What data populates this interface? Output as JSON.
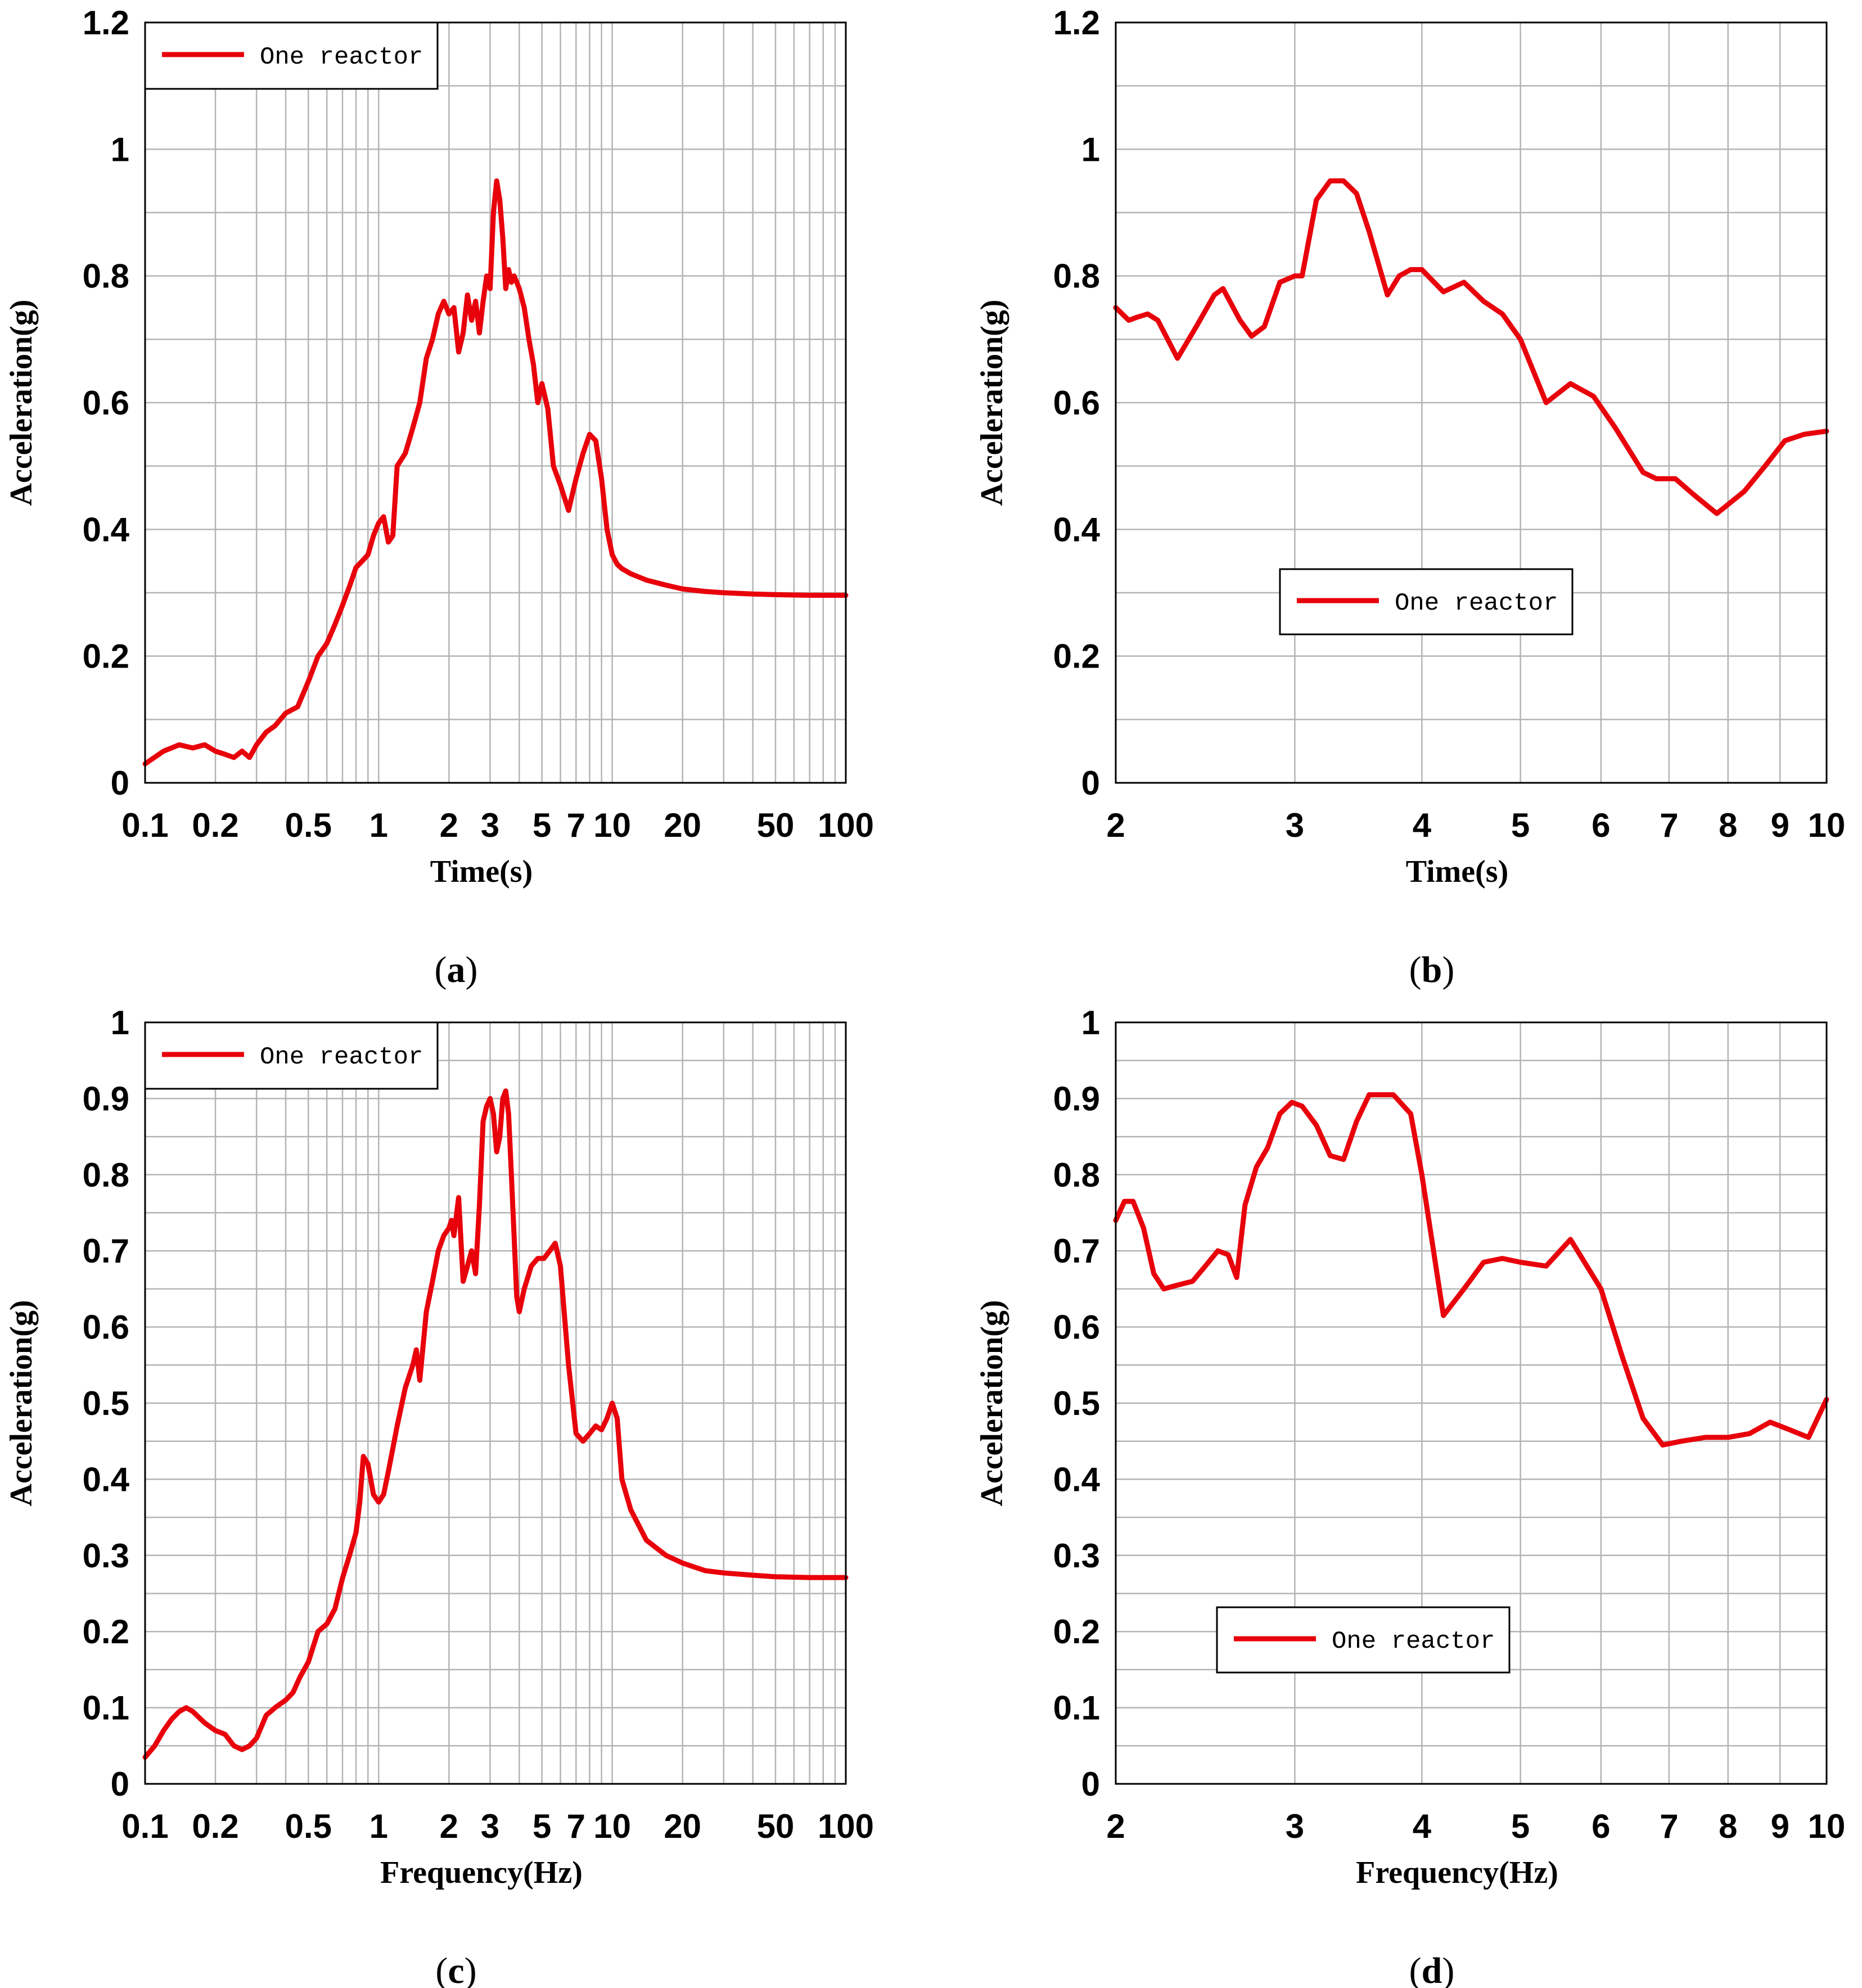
{
  "figure": {
    "line_color": "#e8000b",
    "grid_color": "#b4b4b4",
    "frame_color": "#000000"
  },
  "chart_data": [
    {
      "panel": "a",
      "caption_letter": "a",
      "type": "line",
      "xscale": "log",
      "xlim": [
        0.1,
        100
      ],
      "ylim": [
        0,
        1.2
      ],
      "xticks": [
        0.1,
        0.2,
        0.5,
        1,
        2,
        3,
        5,
        7,
        10,
        20,
        50,
        100
      ],
      "xtick_labels": [
        "0.1",
        "0.2",
        "0.5",
        "1",
        "2",
        "3",
        "5",
        "7",
        "10",
        "20",
        "50",
        "100"
      ],
      "yticks": [
        0,
        0.2,
        0.4,
        0.6,
        0.8,
        1,
        1.2
      ],
      "ytick_labels": [
        "0",
        "0.2",
        "0.4",
        "0.6",
        "0.8",
        "1",
        "1.2"
      ],
      "xlabel": "Time(s)",
      "ylabel": "Acceleration(g)",
      "legend": "One reactor",
      "legend_position": "top-left",
      "grid": true,
      "series": [
        {
          "name": "One reactor",
          "x": [
            0.1,
            0.12,
            0.14,
            0.16,
            0.18,
            0.2,
            0.22,
            0.24,
            0.26,
            0.28,
            0.3,
            0.33,
            0.36,
            0.4,
            0.45,
            0.5,
            0.55,
            0.6,
            0.65,
            0.7,
            0.75,
            0.8,
            0.85,
            0.9,
            0.95,
            1.0,
            1.05,
            1.1,
            1.15,
            1.2,
            1.3,
            1.4,
            1.5,
            1.6,
            1.7,
            1.8,
            1.9,
            2.0,
            2.1,
            2.2,
            2.3,
            2.4,
            2.5,
            2.6,
            2.7,
            2.8,
            2.9,
            3.0,
            3.1,
            3.2,
            3.3,
            3.4,
            3.5,
            3.6,
            3.7,
            3.8,
            3.9,
            4.0,
            4.2,
            4.4,
            4.6,
            4.8,
            5.0,
            5.3,
            5.6,
            6.0,
            6.5,
            7.0,
            7.5,
            8.0,
            8.5,
            9.0,
            9.5,
            10.0,
            10.5,
            11.0,
            12.0,
            14.0,
            17.0,
            20.0,
            25.0,
            30.0,
            40.0,
            50.0,
            70.0,
            100.0
          ],
          "y": [
            0.03,
            0.05,
            0.06,
            0.055,
            0.06,
            0.05,
            0.045,
            0.04,
            0.05,
            0.04,
            0.06,
            0.08,
            0.09,
            0.11,
            0.12,
            0.16,
            0.2,
            0.22,
            0.25,
            0.28,
            0.31,
            0.34,
            0.35,
            0.36,
            0.39,
            0.41,
            0.42,
            0.38,
            0.39,
            0.5,
            0.52,
            0.56,
            0.6,
            0.67,
            0.7,
            0.74,
            0.76,
            0.74,
            0.75,
            0.68,
            0.71,
            0.77,
            0.73,
            0.76,
            0.71,
            0.76,
            0.8,
            0.78,
            0.9,
            0.95,
            0.92,
            0.86,
            0.78,
            0.81,
            0.79,
            0.8,
            0.79,
            0.78,
            0.75,
            0.7,
            0.66,
            0.6,
            0.63,
            0.59,
            0.5,
            0.47,
            0.43,
            0.48,
            0.52,
            0.55,
            0.54,
            0.48,
            0.4,
            0.36,
            0.345,
            0.338,
            0.33,
            0.32,
            0.312,
            0.306,
            0.302,
            0.3,
            0.298,
            0.297,
            0.296,
            0.296
          ]
        }
      ]
    },
    {
      "panel": "b",
      "caption_letter": "b",
      "type": "line",
      "xscale": "log",
      "xlim": [
        2,
        10
      ],
      "ylim": [
        0,
        1.2
      ],
      "xticks": [
        2,
        3,
        4,
        5,
        6,
        7,
        8,
        9,
        10
      ],
      "xtick_labels": [
        "2",
        "3",
        "4",
        "5",
        "6",
        "7",
        "8",
        "9",
        "10"
      ],
      "yticks": [
        0,
        0.2,
        0.4,
        0.6,
        0.8,
        1,
        1.2
      ],
      "ytick_labels": [
        "0",
        "0.2",
        "0.4",
        "0.6",
        "0.8",
        "1",
        "1.2"
      ],
      "xlabel": "Time(s)",
      "ylabel": "Acceleration(g)",
      "legend": "One reactor",
      "legend_position": "center",
      "grid": true,
      "series": [
        {
          "name": "One reactor",
          "x": [
            2.0,
            2.06,
            2.1,
            2.15,
            2.2,
            2.3,
            2.4,
            2.5,
            2.55,
            2.65,
            2.72,
            2.8,
            2.9,
            3.0,
            3.05,
            3.15,
            3.25,
            3.35,
            3.45,
            3.55,
            3.7,
            3.8,
            3.9,
            4.0,
            4.2,
            4.4,
            4.6,
            4.8,
            5.0,
            5.3,
            5.6,
            5.9,
            6.2,
            6.6,
            6.8,
            7.1,
            7.4,
            7.8,
            8.3,
            8.7,
            9.1,
            9.5,
            10.0
          ],
          "y": [
            0.75,
            0.73,
            0.735,
            0.74,
            0.73,
            0.67,
            0.72,
            0.77,
            0.78,
            0.73,
            0.705,
            0.72,
            0.79,
            0.8,
            0.8,
            0.92,
            0.95,
            0.95,
            0.93,
            0.87,
            0.77,
            0.8,
            0.81,
            0.81,
            0.775,
            0.79,
            0.76,
            0.74,
            0.7,
            0.6,
            0.63,
            0.61,
            0.56,
            0.49,
            0.48,
            0.48,
            0.455,
            0.425,
            0.46,
            0.5,
            0.54,
            0.55,
            0.555
          ]
        }
      ]
    },
    {
      "panel": "c",
      "caption_letter": "c",
      "type": "line",
      "xscale": "log",
      "xlim": [
        0.1,
        100
      ],
      "ylim": [
        0,
        1
      ],
      "xticks": [
        0.1,
        0.2,
        0.5,
        1,
        2,
        3,
        5,
        7,
        10,
        20,
        50,
        100
      ],
      "xtick_labels": [
        "0.1",
        "0.2",
        "0.5",
        "1",
        "2",
        "3",
        "5",
        "7",
        "10",
        "20",
        "50",
        "100"
      ],
      "yticks": [
        0,
        0.1,
        0.2,
        0.3,
        0.4,
        0.5,
        0.6,
        0.7,
        0.8,
        0.9,
        1
      ],
      "ytick_labels": [
        "0",
        "0.1",
        "0.2",
        "0.3",
        "0.4",
        "0.5",
        "0.6",
        "0.7",
        "0.8",
        "0.9",
        "1"
      ],
      "xlabel": "Frequency(Hz)",
      "ylabel": "Acceleration(g)",
      "legend": "One reactor",
      "legend_position": "top-left",
      "grid": true,
      "series": [
        {
          "name": "One reactor",
          "x": [
            0.1,
            0.11,
            0.12,
            0.13,
            0.14,
            0.15,
            0.16,
            0.18,
            0.2,
            0.22,
            0.24,
            0.26,
            0.28,
            0.3,
            0.33,
            0.36,
            0.4,
            0.43,
            0.46,
            0.5,
            0.55,
            0.6,
            0.65,
            0.7,
            0.75,
            0.8,
            0.83,
            0.86,
            0.9,
            0.95,
            1.0,
            1.05,
            1.1,
            1.2,
            1.3,
            1.4,
            1.45,
            1.5,
            1.6,
            1.7,
            1.8,
            1.9,
            2.0,
            2.05,
            2.1,
            2.2,
            2.3,
            2.4,
            2.5,
            2.6,
            2.7,
            2.8,
            2.9,
            3.0,
            3.1,
            3.2,
            3.3,
            3.4,
            3.5,
            3.6,
            3.7,
            3.8,
            3.9,
            4.0,
            4.2,
            4.5,
            4.8,
            5.1,
            5.4,
            5.7,
            6.0,
            6.5,
            7.0,
            7.5,
            8.0,
            8.5,
            9.0,
            9.5,
            10.0,
            10.5,
            11.0,
            12.0,
            14.0,
            17.0,
            20.0,
            25.0,
            30.0,
            40.0,
            50.0,
            70.0,
            100.0
          ],
          "y": [
            0.035,
            0.05,
            0.07,
            0.085,
            0.095,
            0.1,
            0.095,
            0.08,
            0.07,
            0.065,
            0.05,
            0.045,
            0.05,
            0.06,
            0.09,
            0.1,
            0.11,
            0.12,
            0.14,
            0.16,
            0.2,
            0.21,
            0.23,
            0.27,
            0.3,
            0.33,
            0.37,
            0.43,
            0.42,
            0.38,
            0.37,
            0.38,
            0.41,
            0.47,
            0.52,
            0.55,
            0.57,
            0.53,
            0.62,
            0.66,
            0.7,
            0.72,
            0.73,
            0.74,
            0.72,
            0.77,
            0.66,
            0.68,
            0.7,
            0.67,
            0.76,
            0.87,
            0.89,
            0.9,
            0.88,
            0.83,
            0.85,
            0.9,
            0.91,
            0.88,
            0.8,
            0.72,
            0.64,
            0.62,
            0.65,
            0.68,
            0.69,
            0.69,
            0.7,
            0.71,
            0.68,
            0.55,
            0.46,
            0.45,
            0.46,
            0.47,
            0.465,
            0.48,
            0.5,
            0.48,
            0.4,
            0.36,
            0.32,
            0.3,
            0.29,
            0.28,
            0.277,
            0.274,
            0.272,
            0.271,
            0.271
          ]
        }
      ]
    },
    {
      "panel": "d",
      "caption_letter": "d",
      "type": "line",
      "xscale": "log",
      "xlim": [
        2,
        10
      ],
      "ylim": [
        0,
        1
      ],
      "xticks": [
        2,
        3,
        4,
        5,
        6,
        7,
        8,
        9,
        10
      ],
      "xtick_labels": [
        "2",
        "3",
        "4",
        "5",
        "6",
        "7",
        "8",
        "9",
        "10"
      ],
      "yticks": [
        0,
        0.1,
        0.2,
        0.3,
        0.4,
        0.5,
        0.6,
        0.7,
        0.8,
        0.9,
        1
      ],
      "ytick_labels": [
        "0",
        "0.1",
        "0.2",
        "0.3",
        "0.4",
        "0.5",
        "0.6",
        "0.7",
        "0.8",
        "0.9",
        "1"
      ],
      "xlabel": "Frequency(Hz)",
      "ylabel": "Acceleration(g)",
      "legend": "One reactor",
      "legend_position": "bottom-left",
      "grid": true,
      "series": [
        {
          "name": "One reactor",
          "x": [
            2.0,
            2.04,
            2.08,
            2.13,
            2.18,
            2.23,
            2.3,
            2.38,
            2.45,
            2.52,
            2.58,
            2.63,
            2.68,
            2.75,
            2.82,
            2.9,
            2.98,
            3.05,
            3.15,
            3.25,
            3.35,
            3.45,
            3.55,
            3.65,
            3.75,
            3.9,
            4.0,
            4.2,
            4.4,
            4.6,
            4.8,
            5.0,
            5.3,
            5.6,
            6.0,
            6.3,
            6.6,
            6.9,
            7.2,
            7.6,
            8.0,
            8.4,
            8.8,
            9.2,
            9.6,
            10.0
          ],
          "y": [
            0.74,
            0.765,
            0.765,
            0.73,
            0.67,
            0.65,
            0.655,
            0.66,
            0.68,
            0.7,
            0.695,
            0.665,
            0.76,
            0.81,
            0.835,
            0.88,
            0.895,
            0.89,
            0.865,
            0.825,
            0.82,
            0.87,
            0.905,
            0.905,
            0.905,
            0.88,
            0.8,
            0.615,
            0.65,
            0.685,
            0.69,
            0.685,
            0.68,
            0.715,
            0.65,
            0.56,
            0.48,
            0.445,
            0.45,
            0.455,
            0.455,
            0.46,
            0.475,
            0.465,
            0.455,
            0.505
          ]
        }
      ]
    }
  ]
}
